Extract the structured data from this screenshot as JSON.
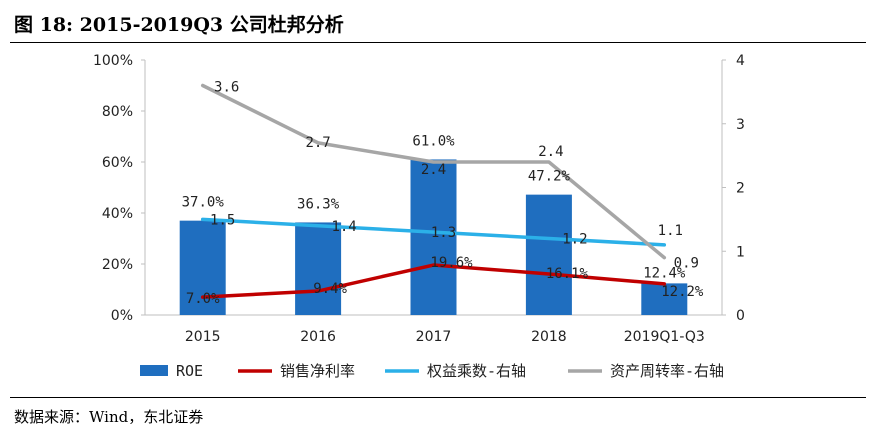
{
  "figure_title": "图 18:  2015-2019Q3 公司杜邦分析",
  "source_note": "数据来源：Wind，东北证券",
  "colors": {
    "bar": "#1f6ebf",
    "net_margin": "#c00000",
    "equity_multiplier": "#2bb0e8",
    "asset_turnover": "#a6a6a6"
  },
  "chart_data": {
    "type": "bar",
    "categories": [
      "2015",
      "2016",
      "2017",
      "2018",
      "2019Q1-Q3"
    ],
    "left_axis": {
      "ylim": [
        0,
        100
      ],
      "ticks": [
        "0%",
        "20%",
        "40%",
        "60%",
        "80%",
        "100%"
      ]
    },
    "right_axis": {
      "ylim": [
        0,
        4
      ],
      "ticks": [
        "0",
        "1",
        "2",
        "3",
        "4"
      ]
    },
    "series": [
      {
        "name": "ROE",
        "type": "bar",
        "axis": "left",
        "values": [
          37.0,
          36.3,
          61.0,
          47.2,
          12.4
        ],
        "labels": [
          "37.0%",
          "36.3%",
          "61.0%",
          "47.2%",
          "12.4%"
        ]
      },
      {
        "name": "销售净利率",
        "type": "line",
        "axis": "left",
        "values": [
          7.0,
          9.4,
          19.6,
          16.1,
          12.2
        ],
        "labels": [
          "7.0%",
          "9.4%",
          "19.6%",
          "16.1%",
          "12.2%"
        ]
      },
      {
        "name": "权益乘数-右轴",
        "type": "line",
        "axis": "right",
        "values": [
          1.5,
          1.4,
          1.3,
          1.2,
          1.1
        ],
        "labels": [
          "1.5",
          "1.4",
          "1.3",
          "1.2",
          "1.1"
        ]
      },
      {
        "name": "资产周转率-右轴",
        "type": "line",
        "axis": "right",
        "values": [
          3.6,
          2.7,
          2.4,
          2.4,
          0.9
        ],
        "labels": [
          "3.6",
          "2.7",
          "2.4",
          "2.4",
          "0.9"
        ]
      }
    ],
    "legend_position": "bottom",
    "grid": false
  }
}
